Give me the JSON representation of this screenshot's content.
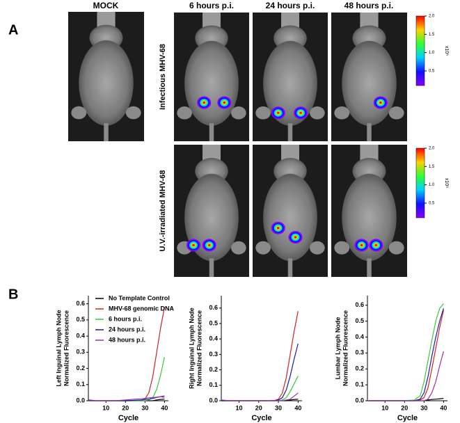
{
  "panel_a": {
    "label": "A",
    "columns": [
      "MOCK",
      "6 hours p.i.",
      "24 hours p.i.",
      "48 hours p.i."
    ],
    "rows": [
      "Infectious MHV-68",
      "U.V.-irradiated MHV-68"
    ],
    "colorbar": {
      "label": "x10⁶",
      "lim": [
        0.1,
        2.0
      ],
      "ticks": [
        0.5,
        {
          "value": 1.0,
          "label": "1.0"
        },
        1.5,
        {
          "value": 2.0,
          "label": "2.0"
        }
      ]
    }
  },
  "panel_b": {
    "label": "B"
  },
  "chart_data": [
    {
      "type": "line",
      "ylabel": [
        "Left Inguinal Lymph Node",
        "Normalized Fluorescence"
      ],
      "xlabel": "Cycle",
      "x": [
        1,
        5,
        10,
        15,
        20,
        25,
        28,
        30,
        32,
        34,
        36,
        38,
        40
      ],
      "xlim": [
        1,
        42
      ],
      "xticks": [
        10,
        20,
        30,
        40
      ],
      "ylim": [
        0,
        0.65
      ],
      "yticks": [
        {
          "value": 0,
          "label": "0.0"
        },
        0.1,
        0.2,
        0.3,
        0.4,
        0.5,
        0.6
      ],
      "legend": "upper left",
      "series": [
        {
          "name": "No Template Control",
          "color": "#000000",
          "values": [
            0,
            0,
            0,
            0,
            0,
            0,
            0,
            0,
            0,
            0,
            0.005,
            0.008,
            0.01
          ]
        },
        {
          "name": "MHV-68 genomic DNA",
          "color": "#d62020",
          "values": [
            0,
            0,
            0,
            0,
            0,
            0,
            0.002,
            0.01,
            0.05,
            0.15,
            0.3,
            0.45,
            0.58
          ]
        },
        {
          "name": "6 hours p.i.",
          "color": "#33cc33",
          "values": [
            0,
            0,
            0,
            0,
            0,
            0,
            0,
            0,
            0.005,
            0.02,
            0.07,
            0.16,
            0.27
          ]
        },
        {
          "name": "24 hours p.i.",
          "color": "#1a1aa6",
          "values": [
            0.005,
            0,
            0,
            0,
            0,
            0.003,
            0.005,
            0.008,
            0.01,
            0.015,
            0.02,
            0.025,
            0.03
          ]
        },
        {
          "name": "48 hours p.i.",
          "color": "#9933aa",
          "values": [
            0,
            0,
            0,
            0,
            0.005,
            0.01,
            0.012,
            0.015,
            0.018,
            0.02,
            0.022,
            0.025,
            0.02
          ]
        }
      ]
    },
    {
      "type": "line",
      "ylabel": [
        "Right Inguinal Lymph Node",
        "Normalized Fluorescence"
      ],
      "xlabel": "Cycle",
      "x": [
        1,
        5,
        10,
        15,
        20,
        25,
        28,
        30,
        32,
        34,
        36,
        38,
        40
      ],
      "xlim": [
        1,
        42
      ],
      "xticks": [
        10,
        20,
        30,
        40
      ],
      "ylim": [
        0,
        0.68
      ],
      "yticks": [
        {
          "value": 0,
          "label": "0.0"
        },
        0.1,
        0.2,
        0.3,
        0.4,
        0.5,
        0.6
      ],
      "series": [
        {
          "color": "#000000",
          "values": [
            0,
            0,
            0,
            0,
            0,
            0,
            0,
            0,
            0,
            0,
            0.005,
            0.008,
            0.01
          ]
        },
        {
          "color": "#d62020",
          "values": [
            0,
            0,
            0,
            0,
            0,
            0,
            0.002,
            0.01,
            0.05,
            0.15,
            0.3,
            0.45,
            0.58
          ]
        },
        {
          "color": "#33cc33",
          "values": [
            0,
            0,
            0,
            0,
            0,
            0,
            0,
            0,
            0.005,
            0.02,
            0.06,
            0.11,
            0.16
          ]
        },
        {
          "color": "#1a1aa6",
          "values": [
            0,
            0,
            0,
            0,
            0,
            0,
            0,
            0.005,
            0.02,
            0.07,
            0.16,
            0.27,
            0.37
          ]
        },
        {
          "color": "#9933aa",
          "values": [
            0.005,
            0,
            0,
            0,
            0,
            0,
            0,
            0,
            0,
            0.005,
            0.01,
            0.03,
            0.05
          ]
        }
      ]
    },
    {
      "type": "line",
      "ylabel": [
        "Lumbar Lymph Node",
        "Normalized Fluorescence"
      ],
      "xlabel": "Cycle",
      "x": [
        1,
        5,
        10,
        15,
        20,
        25,
        28,
        30,
        32,
        34,
        36,
        38,
        40
      ],
      "xlim": [
        1,
        42
      ],
      "xticks": [
        10,
        20,
        30,
        40
      ],
      "ylim": [
        0,
        0.66
      ],
      "yticks": [
        {
          "value": 0,
          "label": "0.0"
        },
        0.1,
        0.2,
        0.3,
        0.4,
        0.5,
        0.6
      ],
      "series": [
        {
          "color": "#000000",
          "values": [
            0,
            0,
            0,
            0,
            0,
            0,
            0,
            0,
            0.005,
            0.008,
            0.01,
            0.012,
            0.015
          ]
        },
        {
          "color": "#d62020",
          "values": [
            0,
            0,
            0,
            0,
            0,
            0,
            0.005,
            0.02,
            0.08,
            0.2,
            0.33,
            0.46,
            0.57
          ]
        },
        {
          "color": "#33cc33",
          "values": [
            0,
            0,
            0,
            0,
            0,
            0.005,
            0.03,
            0.12,
            0.25,
            0.38,
            0.5,
            0.58,
            0.61
          ]
        },
        {
          "color": "#1a1aa6",
          "values": [
            0,
            0,
            0,
            0,
            0,
            0,
            0.01,
            0.05,
            0.15,
            0.28,
            0.4,
            0.5,
            0.58
          ]
        },
        {
          "color": "#9933aa",
          "values": [
            0,
            0,
            0,
            0,
            0,
            0,
            0,
            0,
            0.01,
            0.05,
            0.12,
            0.22,
            0.31
          ]
        }
      ]
    }
  ]
}
